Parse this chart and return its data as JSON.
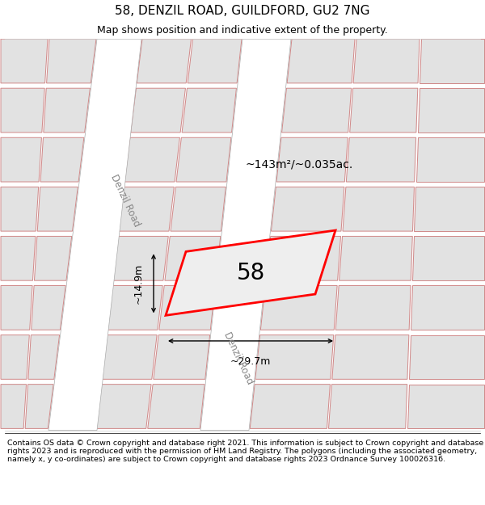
{
  "title": "58, DENZIL ROAD, GUILDFORD, GU2 7NG",
  "subtitle": "Map shows position and indicative extent of the property.",
  "footer": "Contains OS data © Crown copyright and database right 2021. This information is subject to Crown copyright and database rights 2023 and is reproduced with the permission of HM Land Registry. The polygons (including the associated geometry, namely x, y co-ordinates) are subject to Crown copyright and database rights 2023 Ordnance Survey 100026316.",
  "area_label": "~143m²/~0.035ac.",
  "width_label": "~29.7m",
  "height_label": "~14.9m",
  "property_number": "58",
  "road_color": "#ffffff",
  "block_color": "#e2e2e2",
  "block_outline_color": "#d08888",
  "property_fill_color": "#eeeeee",
  "property_outline_color": "#ff0000",
  "map_bg": "#f0f0f0",
  "title_fontsize": 11,
  "subtitle_fontsize": 9,
  "footer_fontsize": 6.8,
  "label_fontsize": 9,
  "road_label_fontsize": 8.5,
  "road_label_color": "#888888"
}
